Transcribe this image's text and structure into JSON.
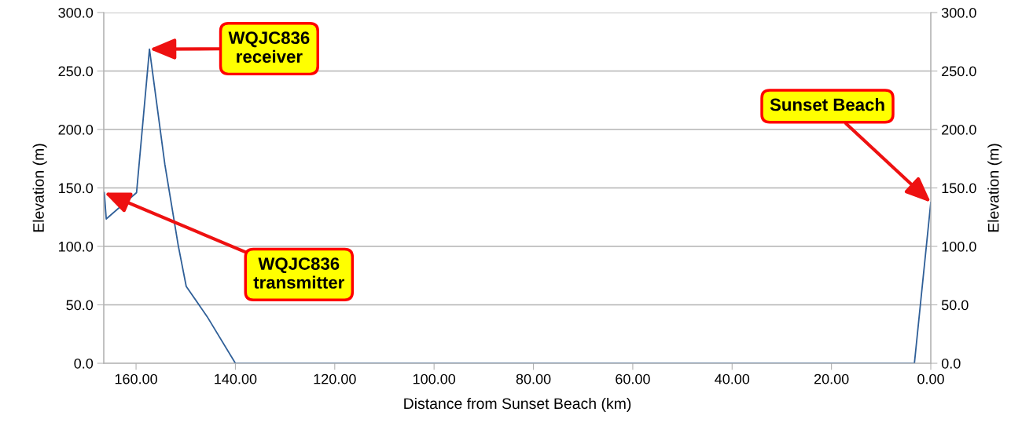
{
  "chart_data": {
    "type": "line",
    "xlabel": "Distance from Sunset Beach (km)",
    "ylabel": "Elevation (m)",
    "y2label": "Elevation (m)",
    "x": [
      166.4,
      166.0,
      159.9,
      157.3,
      154.2,
      151.5,
      149.9,
      145.7,
      140.0,
      3.3,
      0.0
    ],
    "series": [
      {
        "color": "#2f5f98",
        "values": [
          146,
          123.5,
          146,
          268.7,
          170,
          100.6,
          65.8,
          40,
          0,
          0,
          137.6
        ]
      }
    ],
    "xlim": [
      166.5,
      0
    ],
    "xticks": [
      {
        "value": 160,
        "label": "160.00"
      },
      {
        "value": 140,
        "label": "140.00"
      },
      {
        "value": 120,
        "label": "120.00"
      },
      {
        "value": 100,
        "label": "100.00"
      },
      {
        "value": 80,
        "label": "80.00"
      },
      {
        "value": 60,
        "label": "60.00"
      },
      {
        "value": 40,
        "label": "40.00"
      },
      {
        "value": 20,
        "label": "20.00"
      },
      {
        "value": 0,
        "label": "0.00"
      }
    ],
    "ylim": [
      0,
      300
    ],
    "yticks": [
      {
        "value": 0,
        "label": "0.0"
      },
      {
        "value": 50,
        "label": "50.0"
      },
      {
        "value": 100,
        "label": "100.0"
      },
      {
        "value": 150,
        "label": "150.0"
      },
      {
        "value": 200,
        "label": "200.0"
      },
      {
        "value": 250,
        "label": "250.0"
      },
      {
        "value": 300,
        "label": "300.0"
      }
    ],
    "y2lim": [
      0,
      300
    ],
    "y2ticks": [
      {
        "value": 0,
        "label": "0.0"
      },
      {
        "value": 50,
        "label": "50.0"
      },
      {
        "value": 100,
        "label": "100.0"
      },
      {
        "value": 150,
        "label": "150.0"
      },
      {
        "value": 200,
        "label": "200.0"
      },
      {
        "value": 250,
        "label": "250.0"
      },
      {
        "value": 300,
        "label": "300.0"
      }
    ],
    "grid": "y",
    "marker": "none",
    "line_style": "solid",
    "annotations": [
      {
        "text": "WQJC836\nreceiver",
        "x": 157.3,
        "y": 268.7
      },
      {
        "text": "WQJC836\ntransmitter",
        "x": 166.4,
        "y": 146
      },
      {
        "text": "Sunset Beach",
        "x": 0.0,
        "y": 137.6
      }
    ]
  }
}
